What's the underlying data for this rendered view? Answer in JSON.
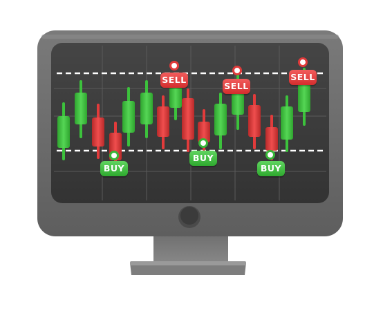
{
  "signals": {
    "sell_label": "SELL",
    "buy_label": "BUY"
  },
  "colors": {
    "bullish": "#3cc23c",
    "bearish": "#e23b3b",
    "screen": "#3a3a3a",
    "bezel": "#6e6e6e",
    "level_line": "#ffffff"
  },
  "icons": [
    "monitor-icon",
    "candlestick-chart-icon",
    "power-button-icon"
  ]
}
